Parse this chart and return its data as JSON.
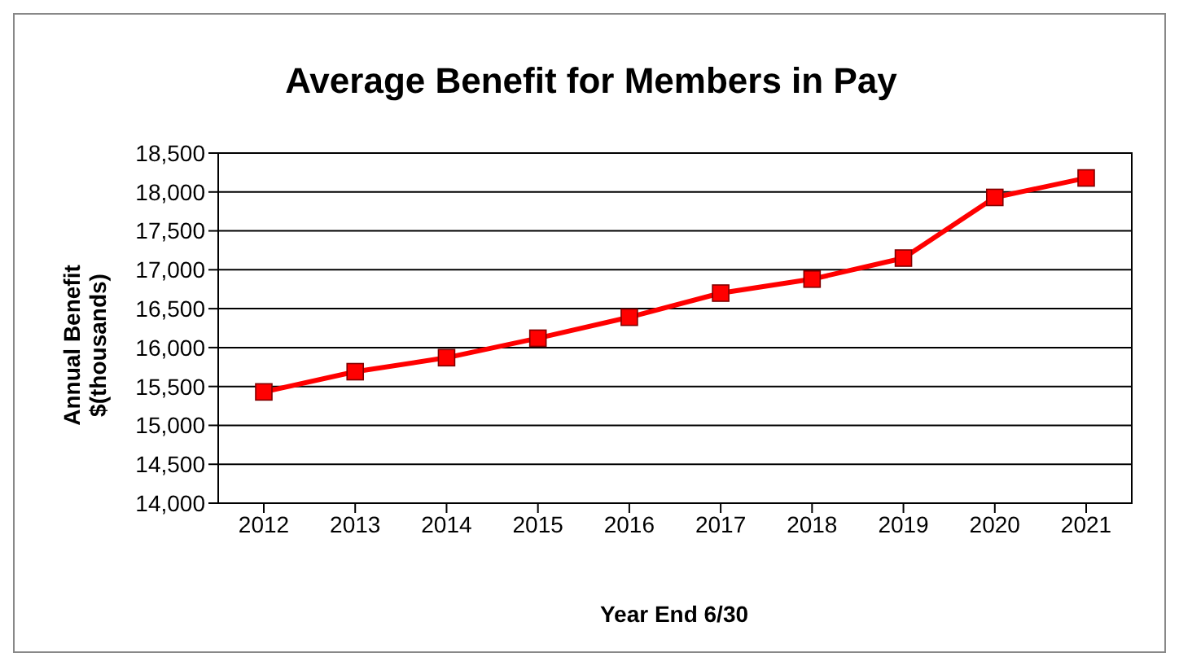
{
  "chart_data": {
    "type": "line",
    "title": "Average Benefit for Members in Pay",
    "xlabel": "Year End 6/30",
    "ylabel": "Annual Benefit\n$(thousands)",
    "categories": [
      "2012",
      "2013",
      "2014",
      "2015",
      "2016",
      "2017",
      "2018",
      "2019",
      "2020",
      "2021"
    ],
    "series": [
      {
        "color": "#ff0000",
        "values": [
          15430,
          15690,
          15870,
          16120,
          16390,
          16700,
          16880,
          17150,
          17930,
          18180
        ]
      }
    ],
    "ylim": [
      14000,
      18500
    ],
    "yticks": [
      {
        "value": 14000,
        "label": "14,000"
      },
      {
        "value": 14500,
        "label": "14,500"
      },
      {
        "value": 15000,
        "label": "15,000"
      },
      {
        "value": 15500,
        "label": "15,500"
      },
      {
        "value": 16000,
        "label": "16,000"
      },
      {
        "value": 16500,
        "label": "16,500"
      },
      {
        "value": 17000,
        "label": "17,000"
      },
      {
        "value": 17500,
        "label": "17,500"
      },
      {
        "value": 18000,
        "label": "18,000"
      },
      {
        "value": 18500,
        "label": "18,500"
      }
    ],
    "grid": "y",
    "legend": false,
    "marker": "square",
    "line_style": "solid"
  }
}
